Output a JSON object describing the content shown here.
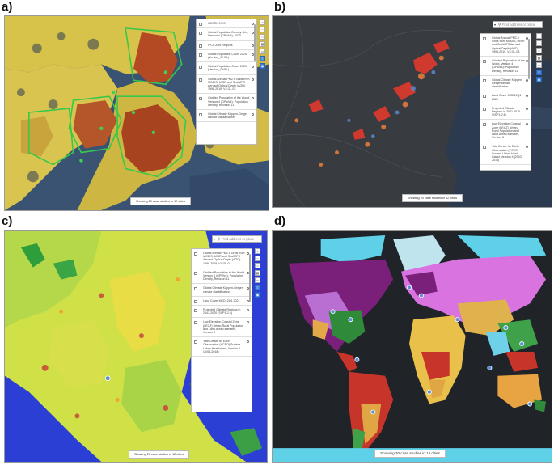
{
  "panels": {
    "a": {
      "label": "a)",
      "layers": [
        "HCCRN-NYC",
        "Global Population Density Grid, Version 4 (GPWv4), 2020",
        "IPCC AR6 Regions",
        "Global Population Count 2020 (Version_GHSL)",
        "Global Population Count 2020 (Version_GHSL)",
        "Global Annual PM2.5 Grids from MODIS, MISR and SeaWiFS Aerosol Optical Depth (AOD), 1998-2019, V4.GL.03",
        "Gridded Population of the World, Version 4 (GPWv4): Population Density, Revision 11",
        "Global Climate Köppen-Geiger climate classification"
      ],
      "footer": "Showing 20 case studies in 12 cities"
    },
    "b": {
      "label": "b)",
      "search_placeholder": "Find address or place",
      "layers": [
        "Global Annual PM2.5 Grids from MODIS, MISR and SeaWiFS Aerosol Optical Depth (AOD), 1998-2019, V4.GL.03",
        "Gridded Population of the World, Version 4 (GPWv4): Population Density, Revision 11",
        "Global Climate Köppen-Geiger climate classification",
        "Land Cover MCD12Q1 2021",
        "Projected Climate Regions in 2041-2070 (SSP1-2.6)",
        "Low Elevation Coastal Zone (LECZ) Urban-Rural Population and Land Area Estimates, Version 3",
        "Yale Center for Earth Observation (YCEO) Surface Urban Heat Island, Version 4 (2003-2018)"
      ],
      "footer": "Showing 20 case studies in 12 cities"
    },
    "c": {
      "label": "c)",
      "search_placeholder": "Find address or place",
      "layers": [
        "Global Annual PM2.5 Grids from MODIS, MISR and SeaWiFS Aerosol Optical Depth (AOD), 1998-2019, V4.GL.03",
        "Gridded Population of the World, Version 4 (GPWv4): Population Density, Revision 11",
        "Global Climate Köppen-Geiger climate classification",
        "Land Cover MCD12Q1 2021",
        "Projected Climate Regions in 2041-2070 (SSP1-2.6)",
        "Low Elevation Coastal Zone (LECZ) Urban-Rural Population and Land Area Estimates, Version 3",
        "Yale Center for Earth Observation (YCEO) Surface Urban Heat Island, Version 4 (2003-2018)"
      ],
      "footer": "Showing 20 case studies in 12 cities"
    },
    "d": {
      "label": "d)",
      "footer": "Showing 20 case studies in 12 cities"
    }
  },
  "icons": {
    "drag": "drag-handle-icon",
    "eye": "visibility-icon",
    "search": "search-icon",
    "dropdown": "chevron-down-icon"
  },
  "colors": {
    "tool_active": "#3d7fd6",
    "case_study_marker": "#5b8fd8"
  }
}
